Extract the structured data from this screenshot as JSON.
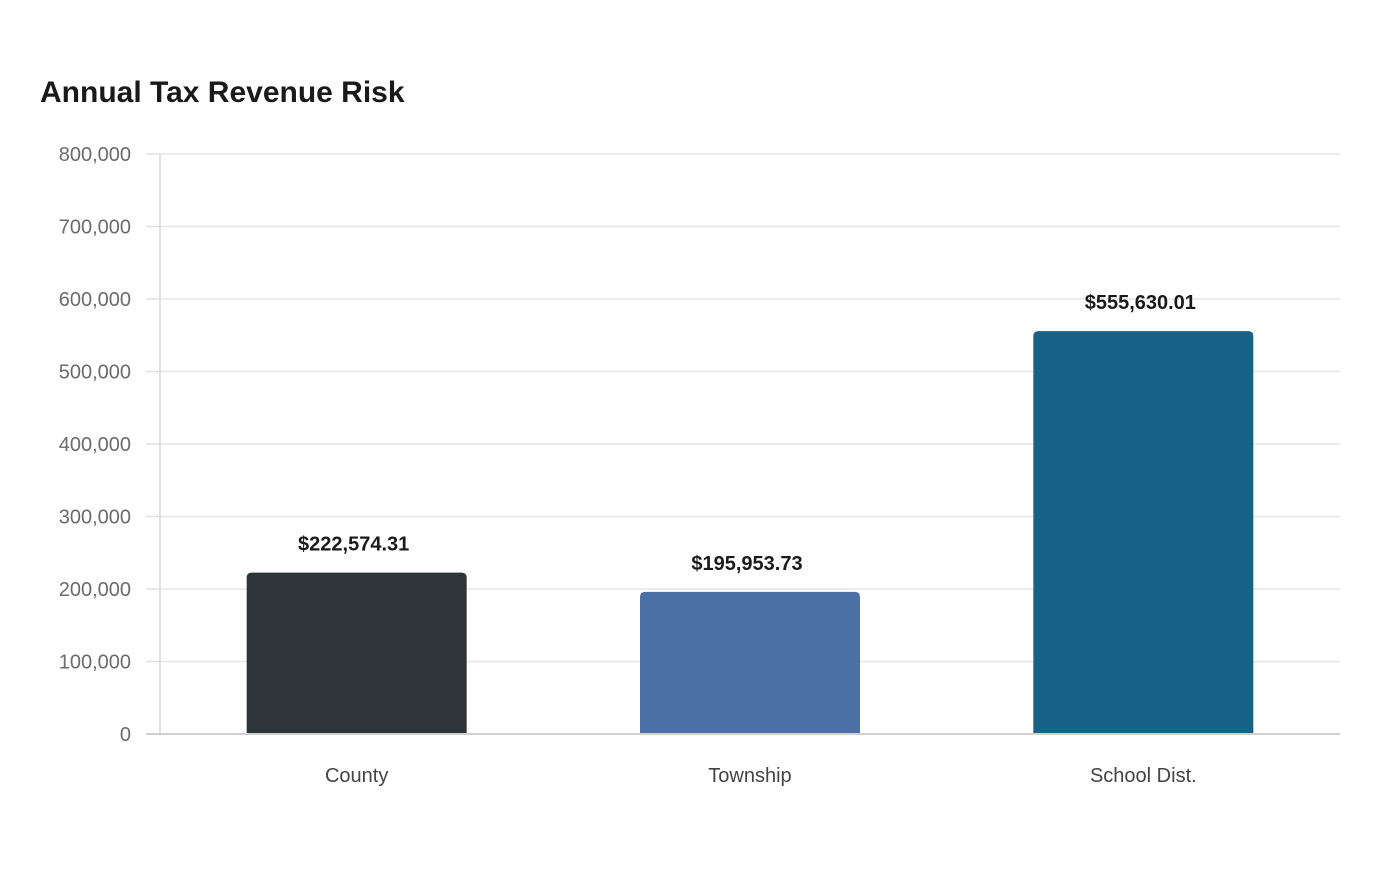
{
  "chart_data": {
    "type": "bar",
    "title": "Annual Tax Revenue Risk",
    "xlabel": "",
    "ylabel": "",
    "categories": [
      "County",
      "Township",
      "School Dist."
    ],
    "values": [
      222574.31,
      195953.73,
      555630.01
    ],
    "data_labels": [
      "$222,574.31",
      "$195,953.73",
      "$555,630.01"
    ],
    "colors": [
      "#2e3538",
      "#4c6fa5",
      "#186288"
    ],
    "ylim": [
      0,
      800000
    ],
    "yticks": [
      0,
      100000,
      200000,
      300000,
      400000,
      500000,
      600000,
      700000,
      800000
    ],
    "ytick_labels": [
      "0",
      "100,000",
      "200,000",
      "300,000",
      "400,000",
      "500,000",
      "600,000",
      "700,000",
      "800,000"
    ],
    "grid": true,
    "legend": "none"
  }
}
